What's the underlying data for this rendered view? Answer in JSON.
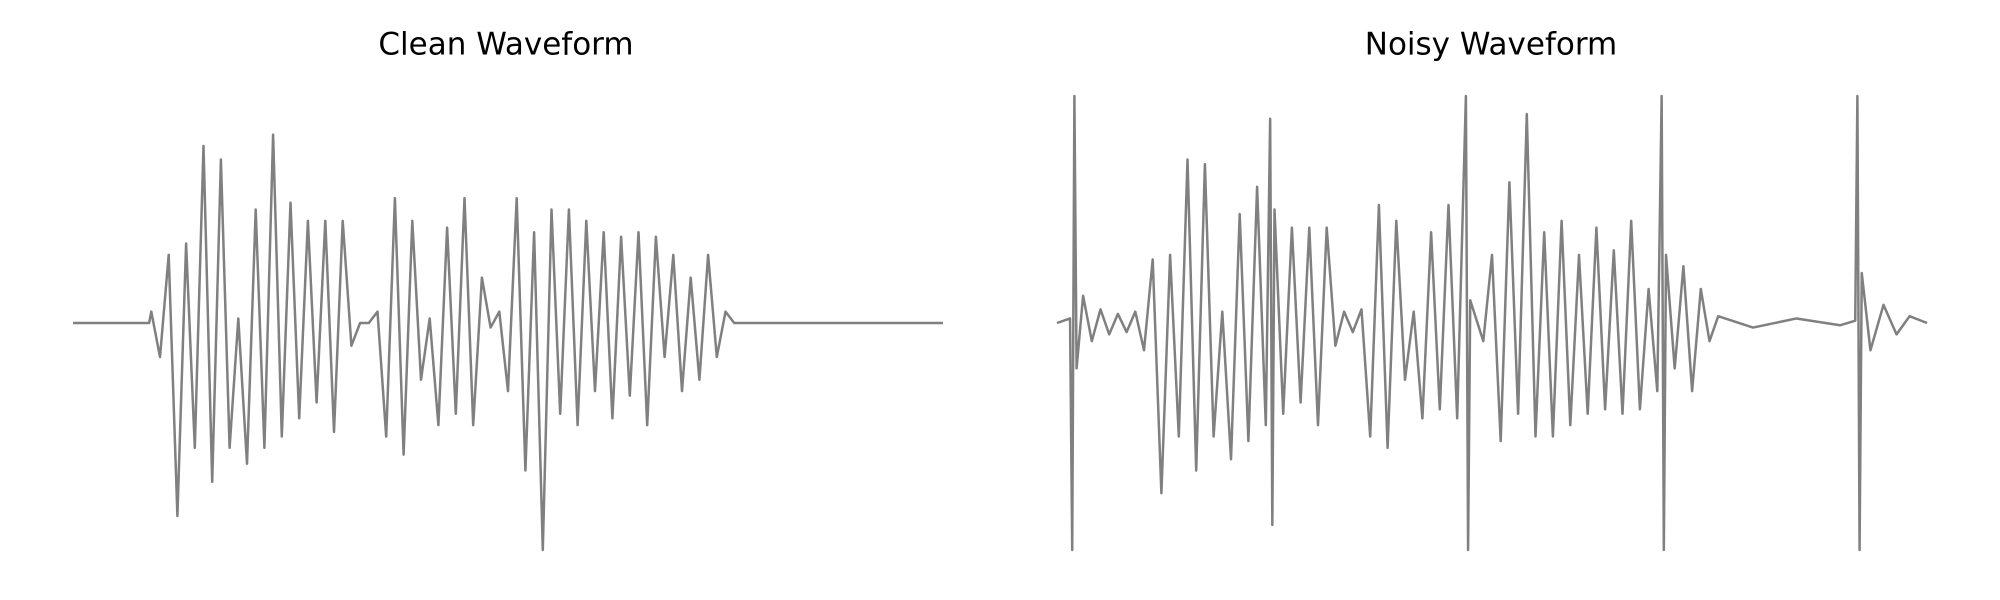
{
  "chart_data": [
    {
      "type": "line",
      "title": "Clean Waveform",
      "color": "#808080",
      "xlim": [
        0,
        4
      ],
      "ylim": [
        -1,
        1
      ],
      "x": [
        0,
        0.35,
        0.36,
        0.4,
        0.44,
        0.48,
        0.52,
        0.56,
        0.6,
        0.64,
        0.68,
        0.72,
        0.76,
        0.8,
        0.84,
        0.88,
        0.92,
        0.96,
        1.0,
        1.04,
        1.08,
        1.12,
        1.16,
        1.2,
        1.24,
        1.28,
        1.32,
        1.36,
        1.4,
        1.44,
        1.48,
        1.52,
        1.56,
        1.6,
        1.64,
        1.68,
        1.72,
        1.76,
        1.8,
        1.84,
        1.88,
        1.92,
        1.96,
        2.0,
        2.04,
        2.08,
        2.12,
        2.16,
        2.2,
        2.24,
        2.28,
        2.32,
        2.36,
        2.4,
        2.44,
        2.48,
        2.52,
        2.56,
        2.6,
        2.64,
        2.68,
        2.72,
        2.76,
        2.8,
        2.84,
        2.88,
        2.92,
        2.96,
        3.0,
        3.04,
        4.0
      ],
      "values": [
        0,
        0,
        0.05,
        -0.15,
        0.3,
        -0.85,
        0.35,
        -0.55,
        0.78,
        -0.7,
        0.72,
        -0.55,
        0.02,
        -0.62,
        0.5,
        -0.55,
        0.83,
        -0.5,
        0.53,
        -0.42,
        0.45,
        -0.35,
        0.45,
        -0.48,
        0.45,
        -0.1,
        0,
        0,
        0.05,
        -0.5,
        0.55,
        -0.58,
        0.45,
        -0.25,
        0.02,
        -0.45,
        0.42,
        -0.4,
        0.55,
        -0.45,
        0.2,
        -0.02,
        0.05,
        -0.3,
        0.55,
        -0.65,
        0.4,
        -1.0,
        0.5,
        -0.4,
        0.5,
        -0.45,
        0.45,
        -0.3,
        0.4,
        -0.42,
        0.38,
        -0.32,
        0.4,
        -0.45,
        0.38,
        -0.15,
        0.3,
        -0.3,
        0.2,
        -0.25,
        0.3,
        -0.15,
        0.05,
        0,
        0
      ]
    },
    {
      "type": "line",
      "title": "Noisy Waveform",
      "color": "#808080",
      "xlim": [
        0,
        4
      ],
      "ylim": [
        -1,
        1
      ],
      "x": [
        0,
        0.06,
        0.07,
        0.08,
        0.09,
        0.12,
        0.16,
        0.2,
        0.24,
        0.28,
        0.32,
        0.36,
        0.4,
        0.44,
        0.48,
        0.52,
        0.56,
        0.6,
        0.64,
        0.68,
        0.72,
        0.76,
        0.8,
        0.84,
        0.88,
        0.92,
        0.96,
        0.98,
        0.99,
        1.0,
        1.04,
        1.08,
        1.12,
        1.16,
        1.2,
        1.24,
        1.28,
        1.32,
        1.36,
        1.4,
        1.44,
        1.48,
        1.52,
        1.56,
        1.6,
        1.64,
        1.68,
        1.72,
        1.76,
        1.8,
        1.84,
        1.88,
        1.89,
        1.9,
        1.96,
        2.0,
        2.04,
        2.08,
        2.12,
        2.16,
        2.2,
        2.24,
        2.28,
        2.32,
        2.36,
        2.4,
        2.44,
        2.48,
        2.52,
        2.56,
        2.6,
        2.64,
        2.68,
        2.72,
        2.76,
        2.78,
        2.79,
        2.8,
        2.84,
        2.88,
        2.92,
        2.96,
        3.0,
        3.04,
        3.2,
        3.4,
        3.6,
        3.67,
        3.68,
        3.69,
        3.7,
        3.74,
        3.8,
        3.86,
        3.92,
        4.0
      ],
      "values": [
        0,
        0.02,
        -1.0,
        1.0,
        -0.2,
        0.12,
        -0.08,
        0.06,
        -0.05,
        0.04,
        -0.04,
        0.05,
        -0.12,
        0.28,
        -0.75,
        0.3,
        -0.5,
        0.72,
        -0.65,
        0.7,
        -0.5,
        0.05,
        -0.6,
        0.48,
        -0.52,
        0.6,
        -0.45,
        0.9,
        -0.89,
        0.5,
        -0.4,
        0.42,
        -0.35,
        0.42,
        -0.45,
        0.42,
        -0.1,
        0.05,
        -0.04,
        0.06,
        -0.5,
        0.52,
        -0.55,
        0.45,
        -0.25,
        0.05,
        -0.42,
        0.4,
        -0.38,
        0.52,
        -0.42,
        1.0,
        -1.0,
        0.1,
        -0.08,
        0.3,
        -0.52,
        0.62,
        -0.4,
        0.92,
        -0.5,
        0.4,
        -0.5,
        0.45,
        -0.45,
        0.3,
        -0.4,
        0.42,
        -0.38,
        0.32,
        -0.4,
        0.45,
        -0.38,
        0.15,
        -0.3,
        1.0,
        -1.0,
        0.3,
        -0.2,
        0.25,
        -0.3,
        0.15,
        -0.08,
        0.03,
        -0.02,
        0.02,
        -0.01,
        0.01,
        1.0,
        -1.0,
        0.22,
        -0.12,
        0.08,
        -0.05,
        0.03,
        0
      ]
    }
  ]
}
